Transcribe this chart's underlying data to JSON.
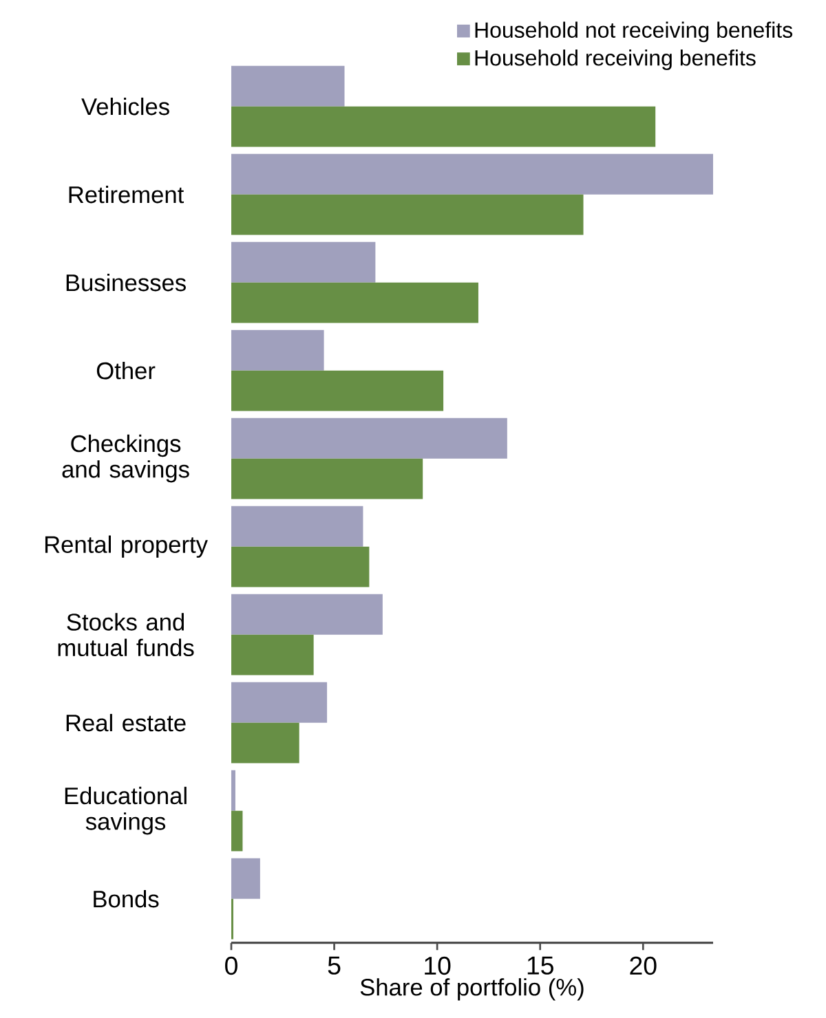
{
  "chart_data": {
    "type": "bar",
    "orientation": "horizontal",
    "xlabel": "Share of portfolio (%)",
    "categories": [
      "Vehicles",
      "Retirement",
      "Businesses",
      "Other",
      "Checkings and savings",
      "Rental property",
      "Stocks and mutual funds",
      "Real estate",
      "Educational savings",
      "Bonds"
    ],
    "series": [
      {
        "name": "Household not receiving benefits",
        "color": "#a0a0bd",
        "values": [
          5.5,
          23.4,
          7.0,
          4.5,
          13.4,
          6.4,
          7.35,
          4.65,
          0.2,
          1.4
        ]
      },
      {
        "name": "Household receiving benefits",
        "color": "#678f45",
        "values": [
          20.6,
          17.1,
          12.0,
          10.3,
          9.3,
          6.7,
          4.0,
          3.3,
          0.55,
          0.1
        ]
      }
    ],
    "xlim": [
      0,
      23.4
    ],
    "xticks": [
      0,
      5,
      10,
      15,
      20
    ],
    "legend": "top right",
    "grid": false
  }
}
